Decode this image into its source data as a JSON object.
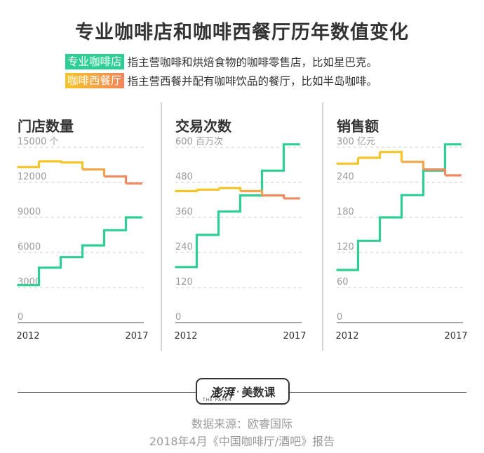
{
  "title": "专业咖啡店和咖啡西餐厅历年数值变化",
  "legend": [
    {
      "tag": "专业咖啡店",
      "desc": "指主营咖啡和烘焙食物的咖啡零售店，比如星巴克。",
      "color": "#2ecf95"
    },
    {
      "tag": "咖啡西餐厅",
      "desc": "指主营西餐并配有咖啡饮品的餐厅，比如半岛咖啡。",
      "color_gradient": [
        "#f5c427",
        "#f2845c"
      ]
    }
  ],
  "colors": {
    "green": "#2ecf95",
    "yellow": "#f5c427",
    "orange": "#ef8a5f",
    "axis": "#8a8a8a",
    "grid": "#cccccc",
    "text": "#333333",
    "tick_text": "#9a9a9a"
  },
  "chart_data": [
    {
      "type": "line",
      "step": true,
      "title": "门店数量",
      "unit": "个",
      "ylim": [
        0,
        15000
      ],
      "yticks": [
        0,
        3000,
        6000,
        9000,
        12000,
        15000
      ],
      "ytick_labels": [
        "0",
        "3000",
        "6000",
        "9000",
        "12000",
        "15000"
      ],
      "x": [
        2012,
        2013,
        2014,
        2015,
        2016,
        2017
      ],
      "x_tick_labels": [
        "2012",
        "2017"
      ],
      "series": [
        {
          "color_key": "green",
          "values": [
            3200,
            4700,
            5600,
            6600,
            7900,
            9000
          ]
        },
        {
          "color_key": "orange",
          "values": [
            13300,
            13800,
            13700,
            13100,
            12500,
            11900
          ]
        }
      ]
    },
    {
      "type": "line",
      "step": true,
      "title": "交易次数",
      "unit": "百万次",
      "ylim": [
        0,
        600
      ],
      "yticks": [
        0,
        120,
        240,
        360,
        480,
        600
      ],
      "ytick_labels": [
        "0",
        "120",
        "240",
        "360",
        "480",
        "600"
      ],
      "x": [
        2012,
        2013,
        2014,
        2015,
        2016,
        2017
      ],
      "x_tick_labels": [
        "2012",
        "2017"
      ],
      "series": [
        {
          "color_key": "green",
          "values": [
            190,
            300,
            380,
            435,
            520,
            610
          ]
        },
        {
          "color_key": "orange",
          "values": [
            450,
            455,
            460,
            450,
            435,
            425
          ]
        }
      ]
    },
    {
      "type": "line",
      "step": true,
      "title": "销售额",
      "unit": "亿元",
      "ylim": [
        0,
        300
      ],
      "yticks": [
        0,
        60,
        120,
        180,
        240,
        300
      ],
      "ytick_labels": [
        "0",
        "60",
        "120",
        "180",
        "240",
        "300"
      ],
      "x": [
        2012,
        2013,
        2014,
        2015,
        2016,
        2017
      ],
      "x_tick_labels": [
        "2012",
        "2017"
      ],
      "series": [
        {
          "color_key": "green",
          "values": [
            90,
            140,
            180,
            218,
            260,
            305
          ]
        },
        {
          "color_key": "orange",
          "values": [
            272,
            282,
            292,
            275,
            262,
            252
          ]
        }
      ]
    }
  ],
  "logo": {
    "brand": "澎湃",
    "sub": "THE PAPER",
    "dot": "·",
    "name": "美数课"
  },
  "source_line1": "数据来源：欧睿国际",
  "source_line2": "2018年4月《中国咖啡厅/酒吧》报告"
}
